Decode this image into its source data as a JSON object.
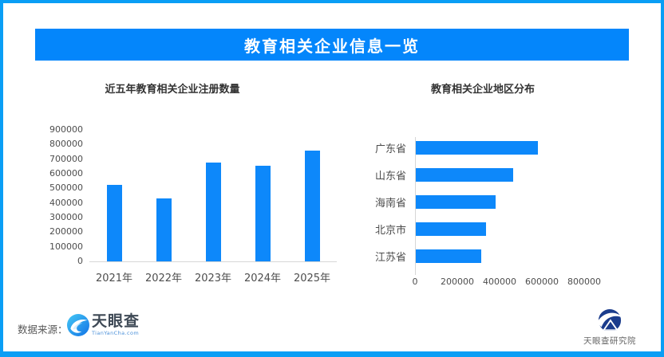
{
  "banner": {
    "title": "教育相关企业信息一览"
  },
  "chart_data": [
    {
      "type": "bar",
      "title": "近五年教育相关企业注册数量",
      "categories": [
        "2021年",
        "2022年",
        "2023年",
        "2024年",
        "2025年"
      ],
      "values": [
        525000,
        430000,
        675000,
        655000,
        760000
      ],
      "xlabel": "",
      "ylabel": "",
      "ylim": [
        0,
        900000
      ],
      "ytick_step": 100000,
      "grid": false,
      "legend": "none"
    },
    {
      "type": "bar-horizontal",
      "title": "教育相关企业地区分布",
      "categories": [
        "广东省",
        "山东省",
        "海南省",
        "北京市",
        "江苏省"
      ],
      "values": [
        580000,
        465000,
        380000,
        335000,
        315000
      ],
      "xlabel": "",
      "ylabel": "",
      "xlim": [
        0,
        800000
      ],
      "xtick_step": 200000,
      "grid": false,
      "legend": "none"
    }
  ],
  "footer": {
    "source_label": "数据来源：",
    "tianyancha": {
      "name": "天眼查",
      "domain": "TianYanCha.com"
    },
    "research_institute": "天眼查研究院"
  },
  "colors": {
    "frame": "#0a9ef5",
    "banner_bg": "#0486fb",
    "banner_text": "#ffffff",
    "bar": "#0d88fa",
    "axis_line": "#d6d6d6",
    "title_text": "#333333",
    "tick_text": "#4d4d4d",
    "source_text": "#595959",
    "logo_navy": "#1b3c8c",
    "logo_blue_light": "#45c8f5",
    "logo_blue_dark": "#1273e6"
  }
}
